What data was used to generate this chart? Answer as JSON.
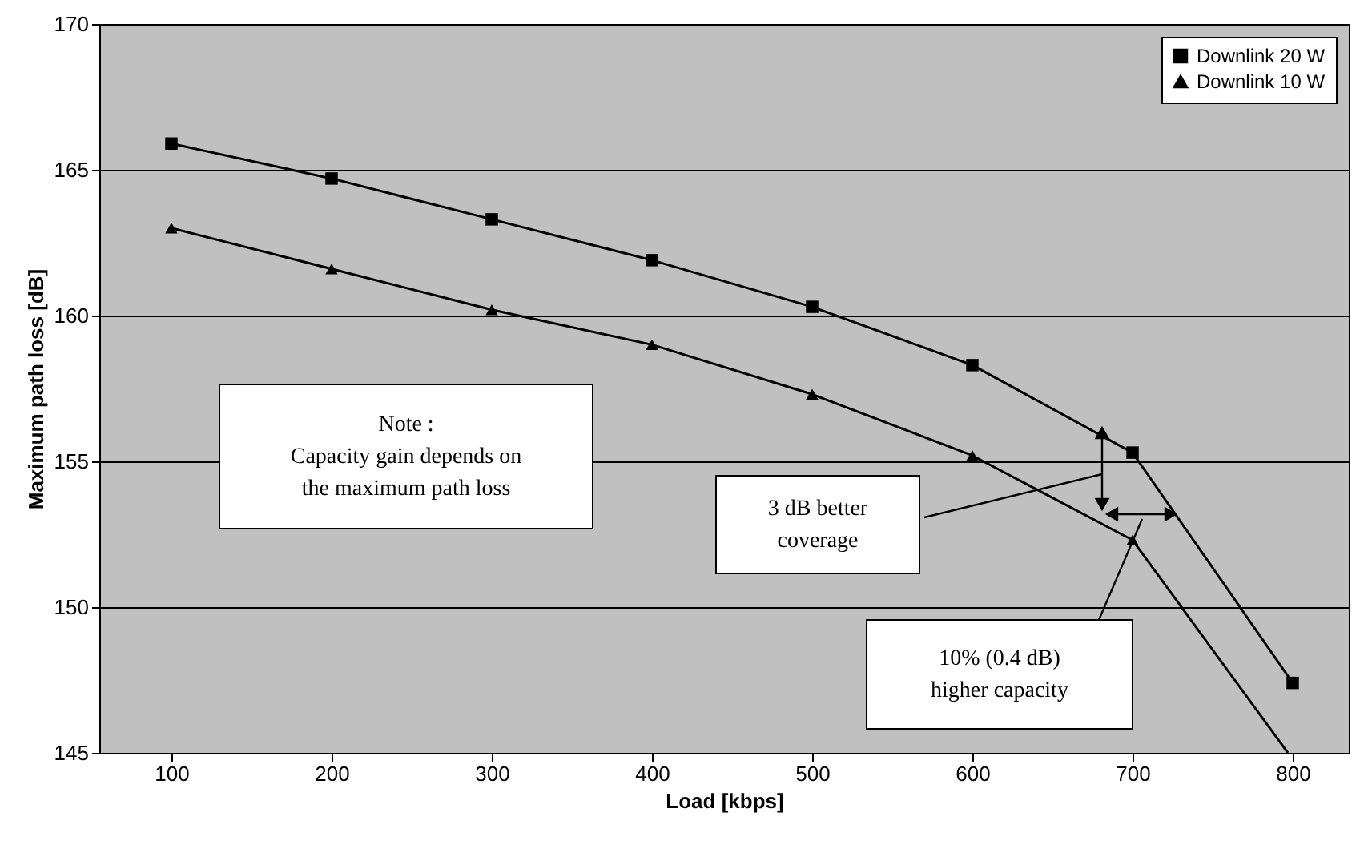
{
  "chart_data": {
    "type": "line",
    "xlabel": "Load [kbps]",
    "ylabel": "Maximum path loss [dB]",
    "x": [
      100,
      200,
      300,
      400,
      500,
      600,
      700,
      800
    ],
    "series": [
      {
        "name": "Downlink 20 W",
        "color": "#000000",
        "marker": "square",
        "values": [
          165.9,
          164.7,
          163.3,
          161.9,
          160.3,
          158.3,
          155.3,
          147.4
        ]
      },
      {
        "name": "Downlink 10 W",
        "color": "#000000",
        "marker": "triangle",
        "x": [
          100,
          200,
          300,
          400,
          500,
          600,
          700,
          797
        ],
        "values": [
          163.0,
          161.6,
          160.2,
          159.0,
          157.3,
          155.2,
          152.3,
          145
        ]
      }
    ],
    "xlim": [
      55,
      835
    ],
    "xticks": [
      100,
      200,
      300,
      400,
      500,
      600,
      700,
      800
    ],
    "ylim": [
      145,
      170
    ],
    "yticks": [
      145,
      150,
      155,
      160,
      165,
      170
    ],
    "grid": "y",
    "legend": "top right",
    "annotations": [
      "Note :\nCapacity gain depends on\nthe maximum path loss",
      "3 dB better\ncoverage",
      "10% (0.4 dB)\nhigher capacity"
    ]
  }
}
